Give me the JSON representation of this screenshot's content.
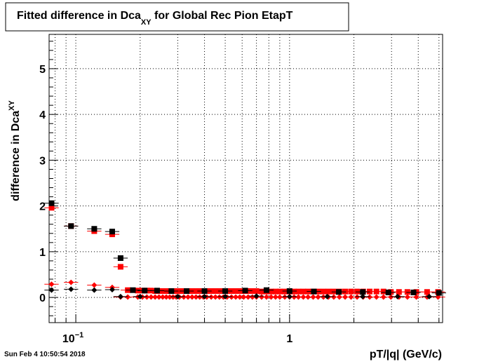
{
  "chart_data": {
    "type": "scatter",
    "title": "Fitted difference in Dca",
    "title_subscript": "XY",
    "title_suffix": " for Global Rec Pion EtapT",
    "xlabel": "pT/|q| (GeV/c)",
    "ylabel": "difference in Dca",
    "ylabel_subscript": "XY",
    "x_scale": "log",
    "xlim": [
      0.075,
      5.2
    ],
    "ylim": [
      -0.55,
      5.75
    ],
    "grid": true,
    "x_ticks": [
      {
        "value": 0.1,
        "label": "10",
        "exp": "−1"
      },
      {
        "value": 1,
        "label": "1"
      }
    ],
    "y_ticks": [
      0,
      1,
      2,
      3,
      4,
      5
    ],
    "timestamp": "Sun Feb  4 10:50:54 2018",
    "colors": {
      "black_series": "#000000",
      "red_series": "#ff0000",
      "grid": "#000000"
    },
    "series": [
      {
        "color": "#000000",
        "marker": "square",
        "x": [
          0.077,
          0.095,
          0.122,
          0.148,
          0.162,
          0.185,
          0.21,
          0.24,
          0.28,
          0.33,
          0.4,
          0.5,
          0.62,
          0.78,
          1.0,
          1.3,
          1.7,
          2.2,
          2.9,
          3.8,
          5.0
        ],
        "y": [
          2.06,
          1.56,
          1.5,
          1.44,
          0.86,
          0.16,
          0.15,
          0.15,
          0.14,
          0.14,
          0.14,
          0.14,
          0.15,
          0.16,
          0.14,
          0.13,
          0.12,
          0.12,
          0.11,
          0.11,
          0.1
        ]
      },
      {
        "color": "#ff0000",
        "marker": "square",
        "x": [
          0.077,
          0.095,
          0.122,
          0.148,
          0.162,
          0.175,
          0.195,
          0.205,
          0.215,
          0.225,
          0.235,
          0.245,
          0.255,
          0.265,
          0.275,
          0.285,
          0.295,
          0.305,
          0.32,
          0.335,
          0.35,
          0.365,
          0.38,
          0.395,
          0.41,
          0.43,
          0.45,
          0.47,
          0.49,
          0.51,
          0.535,
          0.56,
          0.585,
          0.61,
          0.64,
          0.67,
          0.7,
          0.74,
          0.78,
          0.82,
          0.86,
          0.9,
          0.95,
          1.0,
          1.05,
          1.1,
          1.16,
          1.22,
          1.29,
          1.36,
          1.44,
          1.52,
          1.61,
          1.71,
          1.82,
          1.94,
          2.07,
          2.21,
          2.37,
          2.55,
          2.75,
          2.98,
          3.25,
          3.56,
          3.92,
          4.4,
          4.95
        ],
        "y": [
          1.96,
          1.56,
          1.45,
          1.38,
          0.67,
          0.16,
          0.15,
          0.15,
          0.15,
          0.15,
          0.14,
          0.14,
          0.14,
          0.14,
          0.14,
          0.14,
          0.14,
          0.14,
          0.14,
          0.14,
          0.14,
          0.14,
          0.14,
          0.14,
          0.14,
          0.14,
          0.14,
          0.14,
          0.14,
          0.14,
          0.14,
          0.14,
          0.14,
          0.14,
          0.14,
          0.14,
          0.14,
          0.13,
          0.13,
          0.13,
          0.13,
          0.13,
          0.13,
          0.13,
          0.13,
          0.13,
          0.13,
          0.13,
          0.13,
          0.13,
          0.13,
          0.13,
          0.13,
          0.13,
          0.13,
          0.13,
          0.13,
          0.13,
          0.13,
          0.13,
          0.13,
          0.12,
          0.12,
          0.12,
          0.12,
          0.12,
          0.12
        ]
      },
      {
        "color": "#000000",
        "marker": "diamond",
        "x": [
          0.077,
          0.095,
          0.122,
          0.148,
          0.162,
          0.2,
          0.3,
          0.4,
          0.5,
          0.7,
          1.0,
          1.5,
          2.2,
          3.2,
          4.5
        ],
        "y": [
          0.16,
          0.18,
          0.16,
          0.17,
          0.02,
          0.02,
          0.02,
          0.02,
          0.02,
          0.03,
          0.02,
          0.02,
          0.02,
          0.02,
          0.02
        ]
      },
      {
        "color": "#ff0000",
        "marker": "diamond",
        "x": [
          0.077,
          0.095,
          0.122,
          0.148,
          0.162,
          0.175,
          0.195,
          0.205,
          0.215,
          0.225,
          0.235,
          0.245,
          0.255,
          0.265,
          0.275,
          0.285,
          0.295,
          0.305,
          0.32,
          0.335,
          0.35,
          0.365,
          0.38,
          0.395,
          0.41,
          0.43,
          0.45,
          0.47,
          0.49,
          0.51,
          0.535,
          0.56,
          0.585,
          0.61,
          0.64,
          0.67,
          0.7,
          0.74,
          0.78,
          0.82,
          0.86,
          0.9,
          0.95,
          1.0,
          1.05,
          1.1,
          1.16,
          1.22,
          1.29,
          1.36,
          1.44,
          1.52,
          1.61,
          1.71,
          1.82,
          1.94,
          2.07,
          2.21,
          2.37,
          2.55,
          2.75,
          2.98,
          3.25,
          3.56,
          3.92,
          4.4,
          4.95
        ],
        "y": [
          0.29,
          0.33,
          0.27,
          0.22,
          0.01,
          0.01,
          0.01,
          0.01,
          0.01,
          0.01,
          0.01,
          0.01,
          0.01,
          0.01,
          0.01,
          0.01,
          0.01,
          0.01,
          0.01,
          0.01,
          0.01,
          0.01,
          0.01,
          0.01,
          0.01,
          0.01,
          0.01,
          0.01,
          0.01,
          0.01,
          0.01,
          0.01,
          0.01,
          0.01,
          0.01,
          0.01,
          0.01,
          0.01,
          0.01,
          0.01,
          0.01,
          0.01,
          0.01,
          0.01,
          0.01,
          0.01,
          0.01,
          0.01,
          0.01,
          0.01,
          0.01,
          0.01,
          0.01,
          0.01,
          0.01,
          0.01,
          0.01,
          0.01,
          0.01,
          0.01,
          0.01,
          0.01,
          0.01,
          0.01,
          0.01,
          0.01,
          0.01
        ]
      }
    ]
  }
}
